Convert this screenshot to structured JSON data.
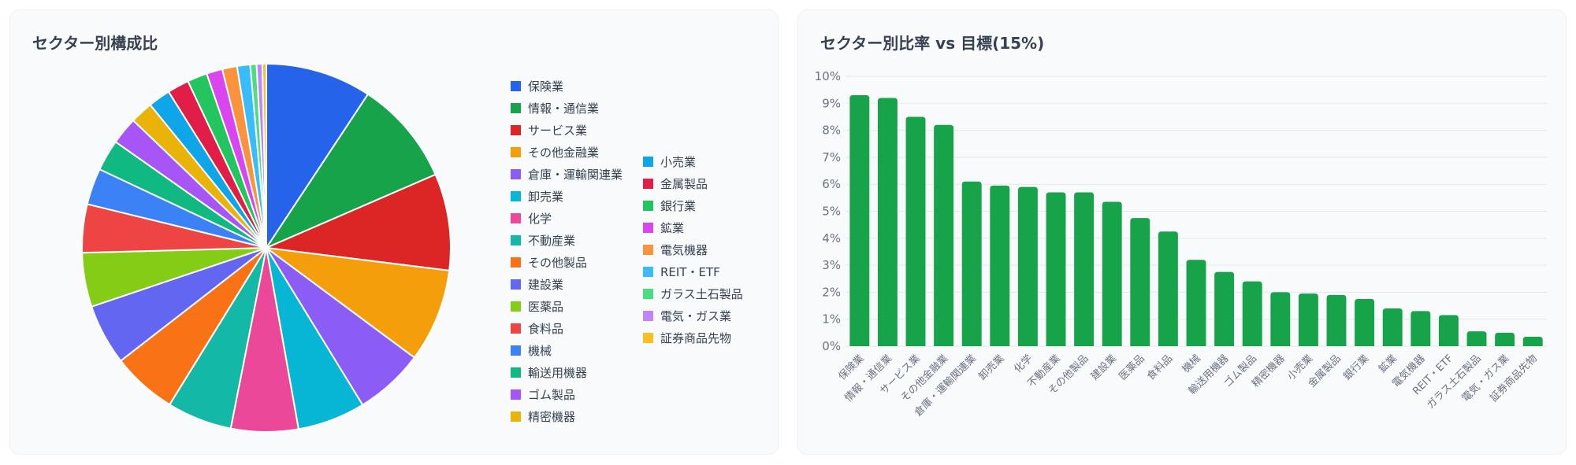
{
  "pie_panel": {
    "title": "セクター別構成比"
  },
  "bar_panel": {
    "title": "セクター別比率 vs 目標(15%)"
  },
  "colors": {
    "pie": [
      "#2563eb",
      "#16a34a",
      "#dc2626",
      "#f59e0b",
      "#8b5cf6",
      "#06b6d4",
      "#ec4899",
      "#14b8a6",
      "#f97316",
      "#6366f1",
      "#84cc16",
      "#ef4444",
      "#3b82f6",
      "#10b981",
      "#a855f7",
      "#eab308",
      "#0ea5e9",
      "#e11d48",
      "#22c55e",
      "#d946ef",
      "#fb923c",
      "#38bdf8",
      "#4ade80",
      "#c084fc",
      "#fbbf24"
    ],
    "bar": "#16a34a",
    "grid": "#e5e7eb",
    "axis_text": "#6b7280"
  },
  "chart_data": [
    {
      "type": "pie",
      "title": "セクター別構成比",
      "legend": "right",
      "categories": [
        "保険業",
        "情報・通信業",
        "サービス業",
        "その他金融業",
        "倉庫・運輸関連業",
        "卸売業",
        "化学",
        "不動産業",
        "その他製品",
        "建設業",
        "医薬品",
        "食料品",
        "機械",
        "輸送用機器",
        "ゴム製品",
        "精密機器",
        "小売業",
        "金属製品",
        "銀行業",
        "鉱業",
        "電気機器",
        "REIT・ETF",
        "ガラス土石製品",
        "電気・ガス業",
        "証券商品先物"
      ],
      "values": [
        9.3,
        9.2,
        8.5,
        8.2,
        6.1,
        5.95,
        5.9,
        5.7,
        5.7,
        5.35,
        4.75,
        4.25,
        3.2,
        2.75,
        2.4,
        2.0,
        1.95,
        1.9,
        1.75,
        1.4,
        1.3,
        1.15,
        0.55,
        0.5,
        0.35
      ]
    },
    {
      "type": "bar",
      "title": "セクター別比率 vs 目標(15%)",
      "categories": [
        "保険業",
        "情報・通信業",
        "サービス業",
        "その他金融業",
        "倉庫・運輸関連業",
        "卸売業",
        "化学",
        "不動産業",
        "その他製品",
        "建設業",
        "医薬品",
        "食料品",
        "機械",
        "輸送用機器",
        "ゴム製品",
        "精密機器",
        "小売業",
        "金属製品",
        "銀行業",
        "鉱業",
        "電気機器",
        "REIT・ETF",
        "ガラス土石製品",
        "電気・ガス業",
        "証券商品先物"
      ],
      "values": [
        9.3,
        9.2,
        8.5,
        8.2,
        6.1,
        5.95,
        5.9,
        5.7,
        5.7,
        5.35,
        4.75,
        4.25,
        3.2,
        2.75,
        2.4,
        2.0,
        1.95,
        1.9,
        1.75,
        1.4,
        1.3,
        1.15,
        0.55,
        0.5,
        0.35
      ],
      "ylim": [
        0,
        10
      ],
      "yticks": [
        0,
        1,
        2,
        3,
        4,
        5,
        6,
        7,
        8,
        9,
        10
      ],
      "ytick_labels": [
        "0%",
        "1%",
        "2%",
        "3%",
        "4%",
        "5%",
        "6%",
        "7%",
        "8%",
        "9%",
        "10%"
      ],
      "grid": true,
      "xlabel": "",
      "ylabel": ""
    }
  ]
}
